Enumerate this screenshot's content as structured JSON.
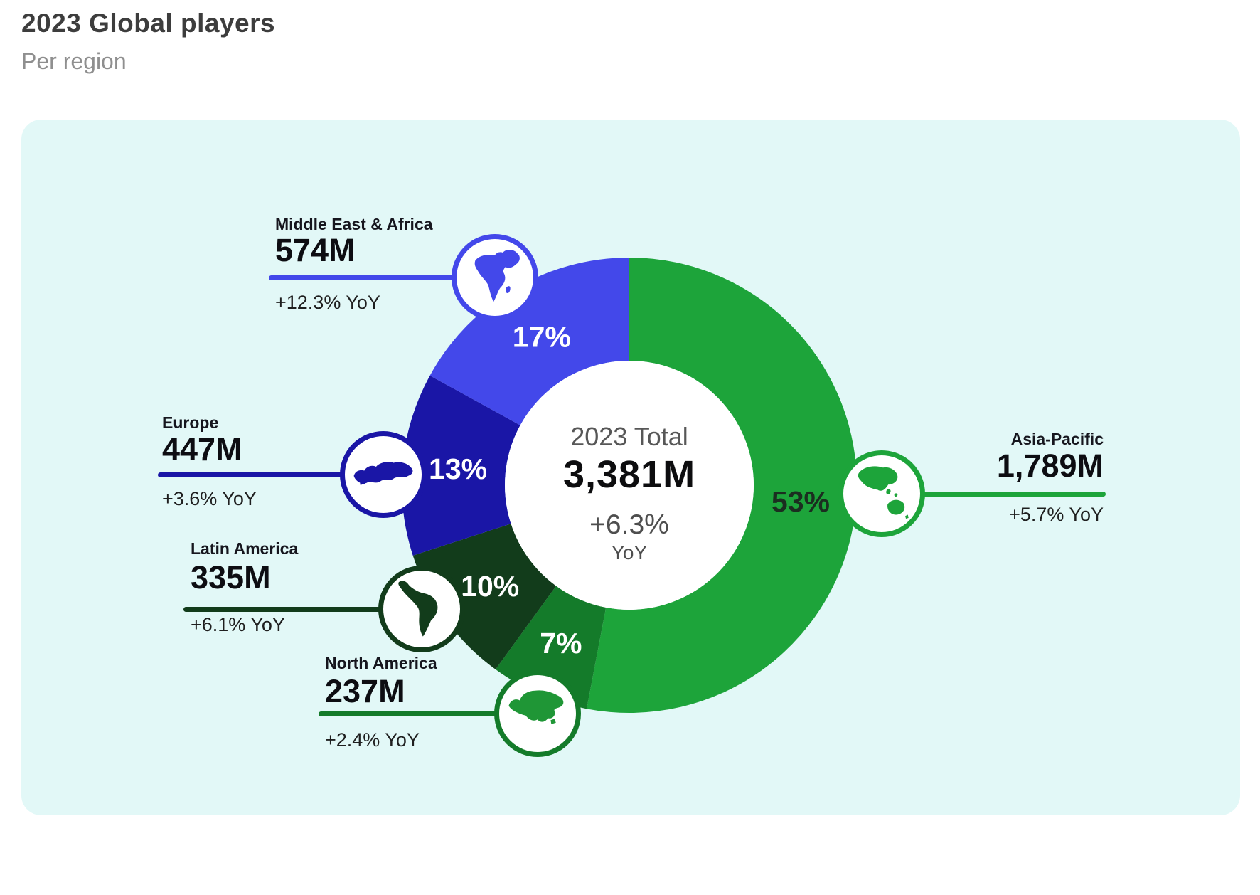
{
  "header": {
    "title": "2023 Global players",
    "subtitle": "Per region"
  },
  "center": {
    "label": "2023 Total",
    "total": "3,381M",
    "yoy_value": "+6.3%",
    "yoy_label": "YoY"
  },
  "regions": [
    {
      "id": "asia-pacific",
      "name": "Asia-Pacific",
      "value": "1,789M",
      "yoy": "+5.7% YoY",
      "pct": "53%",
      "pct_value": 53,
      "color": "#1DA43A",
      "icon_color": "#1DA43A",
      "pct_label_color": "#1b2e20",
      "icon": "asia-oceania-map"
    },
    {
      "id": "north-america",
      "name": "North America",
      "value": "237M",
      "yoy": "+2.4% YoY",
      "pct": "7%",
      "pct_value": 7,
      "color": "#147B2A",
      "icon_color": "#1F9636",
      "pct_label_color": "#ffffff",
      "icon": "north-america-map"
    },
    {
      "id": "latin-america",
      "name": "Latin America",
      "value": "335M",
      "yoy": "+6.1% YoY",
      "pct": "10%",
      "pct_value": 10,
      "color": "#123C1B",
      "icon_color": "#123C1B",
      "pct_label_color": "#ffffff",
      "icon": "latin-america-map"
    },
    {
      "id": "europe",
      "name": "Europe",
      "value": "447M",
      "yoy": "+3.6% YoY",
      "pct": "13%",
      "pct_value": 13,
      "color": "#1A16A6",
      "icon_color": "#1A16A6",
      "pct_label_color": "#ffffff",
      "icon": "europe-map"
    },
    {
      "id": "middle-east-africa",
      "name": "Middle East & Africa",
      "value": "574M",
      "yoy": "+12.3% YoY",
      "pct": "17%",
      "pct_value": 17,
      "color": "#4348EA",
      "icon_color": "#4348EA",
      "pct_label_color": "#ffffff",
      "icon": "africa-middle-east-map"
    }
  ],
  "chart_data": {
    "type": "pie",
    "title": "2023 Global players",
    "subtitle": "Per region",
    "unit": "millions of players",
    "total_label": "2023 Total",
    "total": "3,381M",
    "total_yoy": "+6.3% YoY",
    "categories": [
      "Asia-Pacific",
      "North America",
      "Latin America",
      "Europe",
      "Middle East & Africa"
    ],
    "values_pct": [
      53,
      7,
      10,
      13,
      17
    ],
    "values": [
      "1,789M",
      "237M",
      "335M",
      "447M",
      "574M"
    ],
    "yoy": [
      "+5.7%",
      "+2.4%",
      "+6.1%",
      "+3.6%",
      "+12.3%"
    ],
    "colors": [
      "#1DA43A",
      "#147B2A",
      "#123C1B",
      "#1A16A6",
      "#4348EA"
    ],
    "layout": {
      "donut": true,
      "start_angle_deg": 0,
      "direction": "clockwise",
      "inner_outer_ratio": 0.55,
      "labels": "percent-inside-ring",
      "callouts": "value-and-yoy-with-continent-icons",
      "background": "#E2F8F7"
    }
  }
}
